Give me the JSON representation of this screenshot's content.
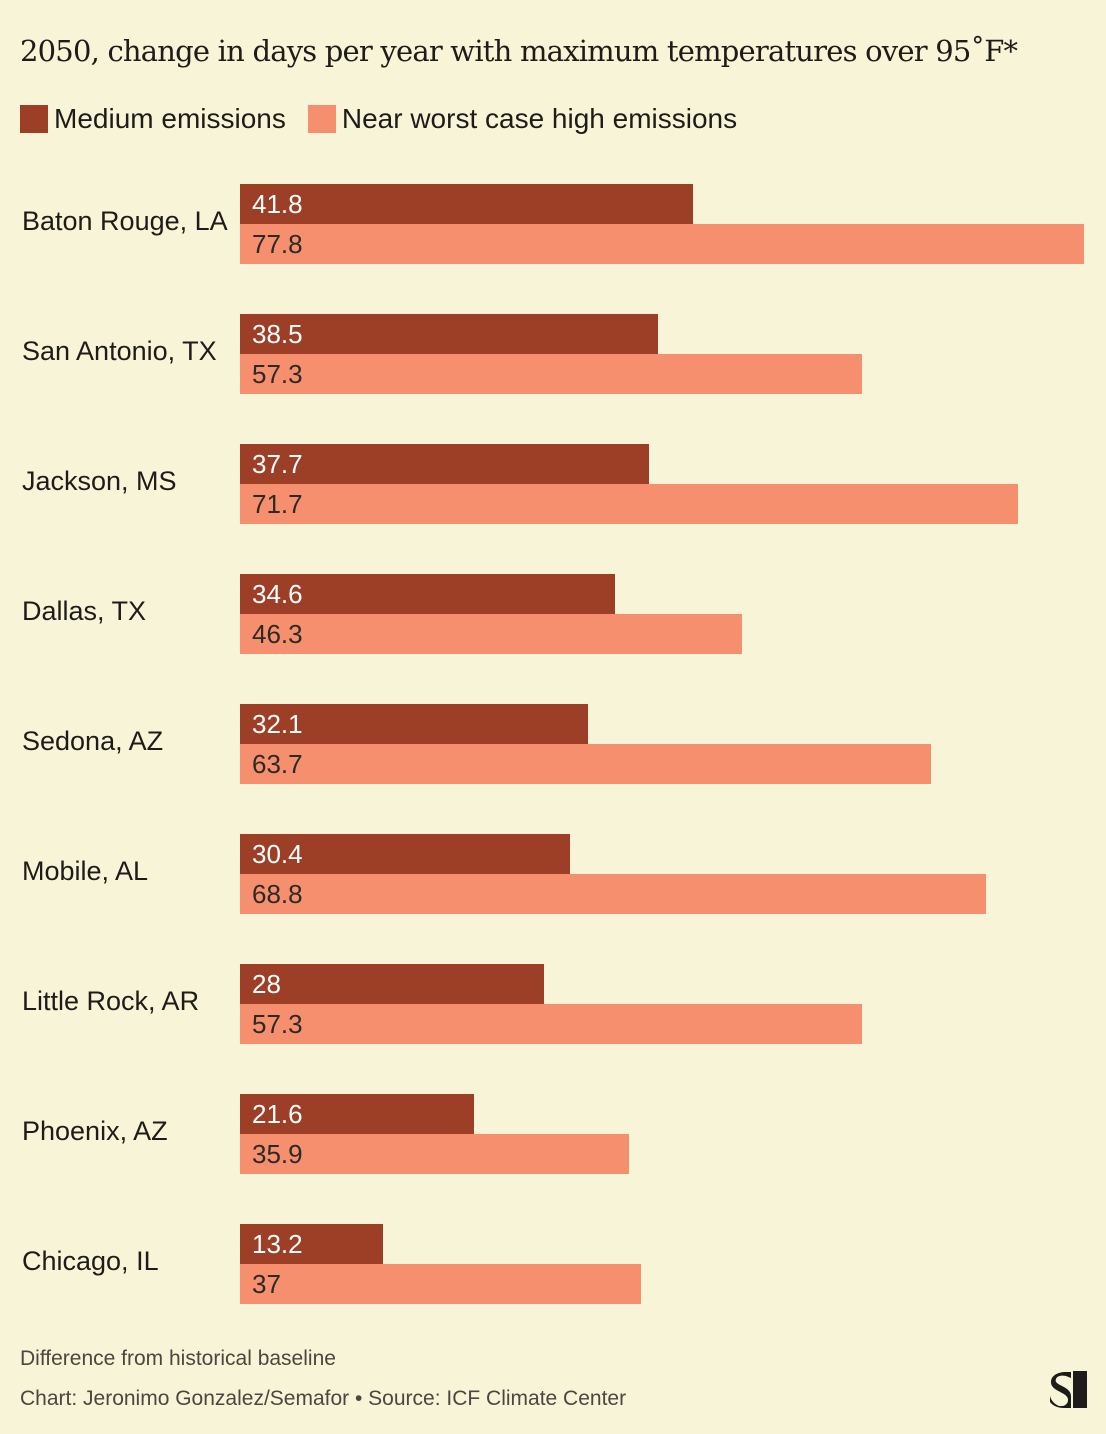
{
  "header": {
    "title": "2050, change in days per year with maximum temperatures over 95˚F*"
  },
  "legend": [
    {
      "label": "Medium emissions",
      "color": "#9c3f26"
    },
    {
      "label": "Near worst case high emissions",
      "color": "#f68f6e"
    }
  ],
  "rows": [
    {
      "city": "Baton Rouge, LA",
      "medium": "41.8",
      "high": "77.8"
    },
    {
      "city": "San Antonio, TX",
      "medium": "38.5",
      "high": "57.3"
    },
    {
      "city": "Jackson, MS",
      "medium": "37.7",
      "high": "71.7"
    },
    {
      "city": "Dallas, TX",
      "medium": "34.6",
      "high": "46.3"
    },
    {
      "city": "Sedona, AZ",
      "medium": "32.1",
      "high": "63.7"
    },
    {
      "city": "Mobile, AL",
      "medium": "30.4",
      "high": "68.8"
    },
    {
      "city": "Little Rock, AR",
      "medium": "28",
      "high": "57.3"
    },
    {
      "city": "Phoenix, AZ",
      "medium": "21.6",
      "high": "35.9"
    },
    {
      "city": "Chicago, IL",
      "medium": "13.2",
      "high": "37"
    }
  ],
  "footer": {
    "note": "Difference from historical baseline",
    "credit": "Chart: Jeronimo Gonzalez/Semafor • Source: ICF Climate Center",
    "logo": "semafor-logo-icon"
  },
  "chart_data": {
    "type": "bar",
    "orientation": "horizontal",
    "title": "2050, change in days per year with maximum temperatures over 95˚F*",
    "subtitle": "",
    "xlabel": "",
    "ylabel": "",
    "categories": [
      "Baton Rouge, LA",
      "San Antonio, TX",
      "Jackson, MS",
      "Dallas, TX",
      "Sedona, AZ",
      "Mobile, AL",
      "Little Rock, AR",
      "Phoenix, AZ",
      "Chicago, IL"
    ],
    "series": [
      {
        "name": "Medium emissions",
        "color": "#9c3f26",
        "values": [
          41.8,
          38.5,
          37.7,
          34.6,
          32.1,
          30.4,
          28,
          21.6,
          13.2
        ]
      },
      {
        "name": "Near worst case high emissions",
        "color": "#f68f6e",
        "values": [
          77.8,
          57.3,
          71.7,
          46.3,
          63.7,
          68.8,
          57.3,
          35.9,
          37
        ]
      }
    ],
    "xlim": [
      0,
      77.8
    ],
    "grid": false,
    "legend_position": "top-left",
    "data_labels": true,
    "annotations": [
      "Difference from historical baseline",
      "Chart: Jeronimo Gonzalez/Semafor • Source: ICF Climate Center"
    ]
  }
}
